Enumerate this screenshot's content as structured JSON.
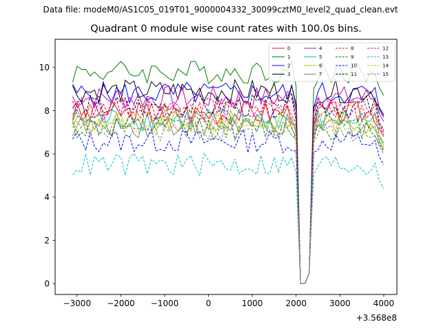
{
  "figure": {
    "suptitle": "Data file: modeM0/AS1C05_019T01_9000004332_30099cztM0_level2_quad_clean.evt"
  },
  "chart_data": {
    "type": "line",
    "title": "Quadrant 0 module wise count rates with 100.0s bins.",
    "xlabel": "",
    "ylabel": "",
    "x_offset_label": "+3.568e8",
    "xlim": [
      -3500,
      4300
    ],
    "ylim": [
      -0.5,
      11.3
    ],
    "xticks": [
      -3000,
      -2000,
      -1000,
      0,
      1000,
      2000,
      3000,
      4000
    ],
    "xtick_labels": [
      "−3000",
      "−2000",
      "−1000",
      "0",
      "1000",
      "2000",
      "3000",
      "4000"
    ],
    "yticks": [
      0,
      2,
      4,
      6,
      8,
      10
    ],
    "ytick_labels": [
      "0",
      "2",
      "4",
      "6",
      "8",
      "10"
    ],
    "grid": false,
    "legend_position": "top-right",
    "x_start": -3100,
    "x_step": 100,
    "num_points": 72,
    "dip": {
      "x_values": [
        2100,
        2200,
        2300
      ],
      "values": [
        0.0,
        0.0,
        0.5
      ]
    },
    "series": [
      {
        "name": "0",
        "color": "#ff0000",
        "dash": "solid",
        "baseline": 7.9
      },
      {
        "name": "1",
        "color": "#008000",
        "dash": "solid",
        "baseline": 9.8
      },
      {
        "name": "2",
        "color": "#0000ff",
        "dash": "solid",
        "baseline": 8.8
      },
      {
        "name": "3",
        "color": "#000000",
        "dash": "solid",
        "baseline": 8.9
      },
      {
        "name": "4",
        "color": "#bf00bf",
        "dash": "solid",
        "baseline": 8.6
      },
      {
        "name": "5",
        "color": "#00bfbf",
        "dash": "solid",
        "baseline": 7.6
      },
      {
        "name": "6",
        "color": "#bfbf00",
        "dash": "solid",
        "baseline": 7.5
      },
      {
        "name": "7",
        "color": "#808080",
        "dash": "solid",
        "baseline": 7.3
      },
      {
        "name": "8",
        "color": "#ff0000",
        "dash": "dashed",
        "baseline": 8.0
      },
      {
        "name": "9",
        "color": "#008000",
        "dash": "dashed",
        "baseline": 7.2
      },
      {
        "name": "10",
        "color": "#0000ff",
        "dash": "dashed",
        "baseline": 6.6
      },
      {
        "name": "11",
        "color": "#000000",
        "dash": "dashed",
        "baseline": 8.2
      },
      {
        "name": "12",
        "color": "#bf00bf",
        "dash": "dashed",
        "baseline": 8.1
      },
      {
        "name": "13",
        "color": "#00bfbf",
        "dash": "dashed",
        "baseline": 5.5
      },
      {
        "name": "14",
        "color": "#bfbf00",
        "dash": "dashed",
        "baseline": 7.4
      },
      {
        "name": "15",
        "color": "#808080",
        "dash": "dashed",
        "baseline": 7.1
      }
    ]
  }
}
